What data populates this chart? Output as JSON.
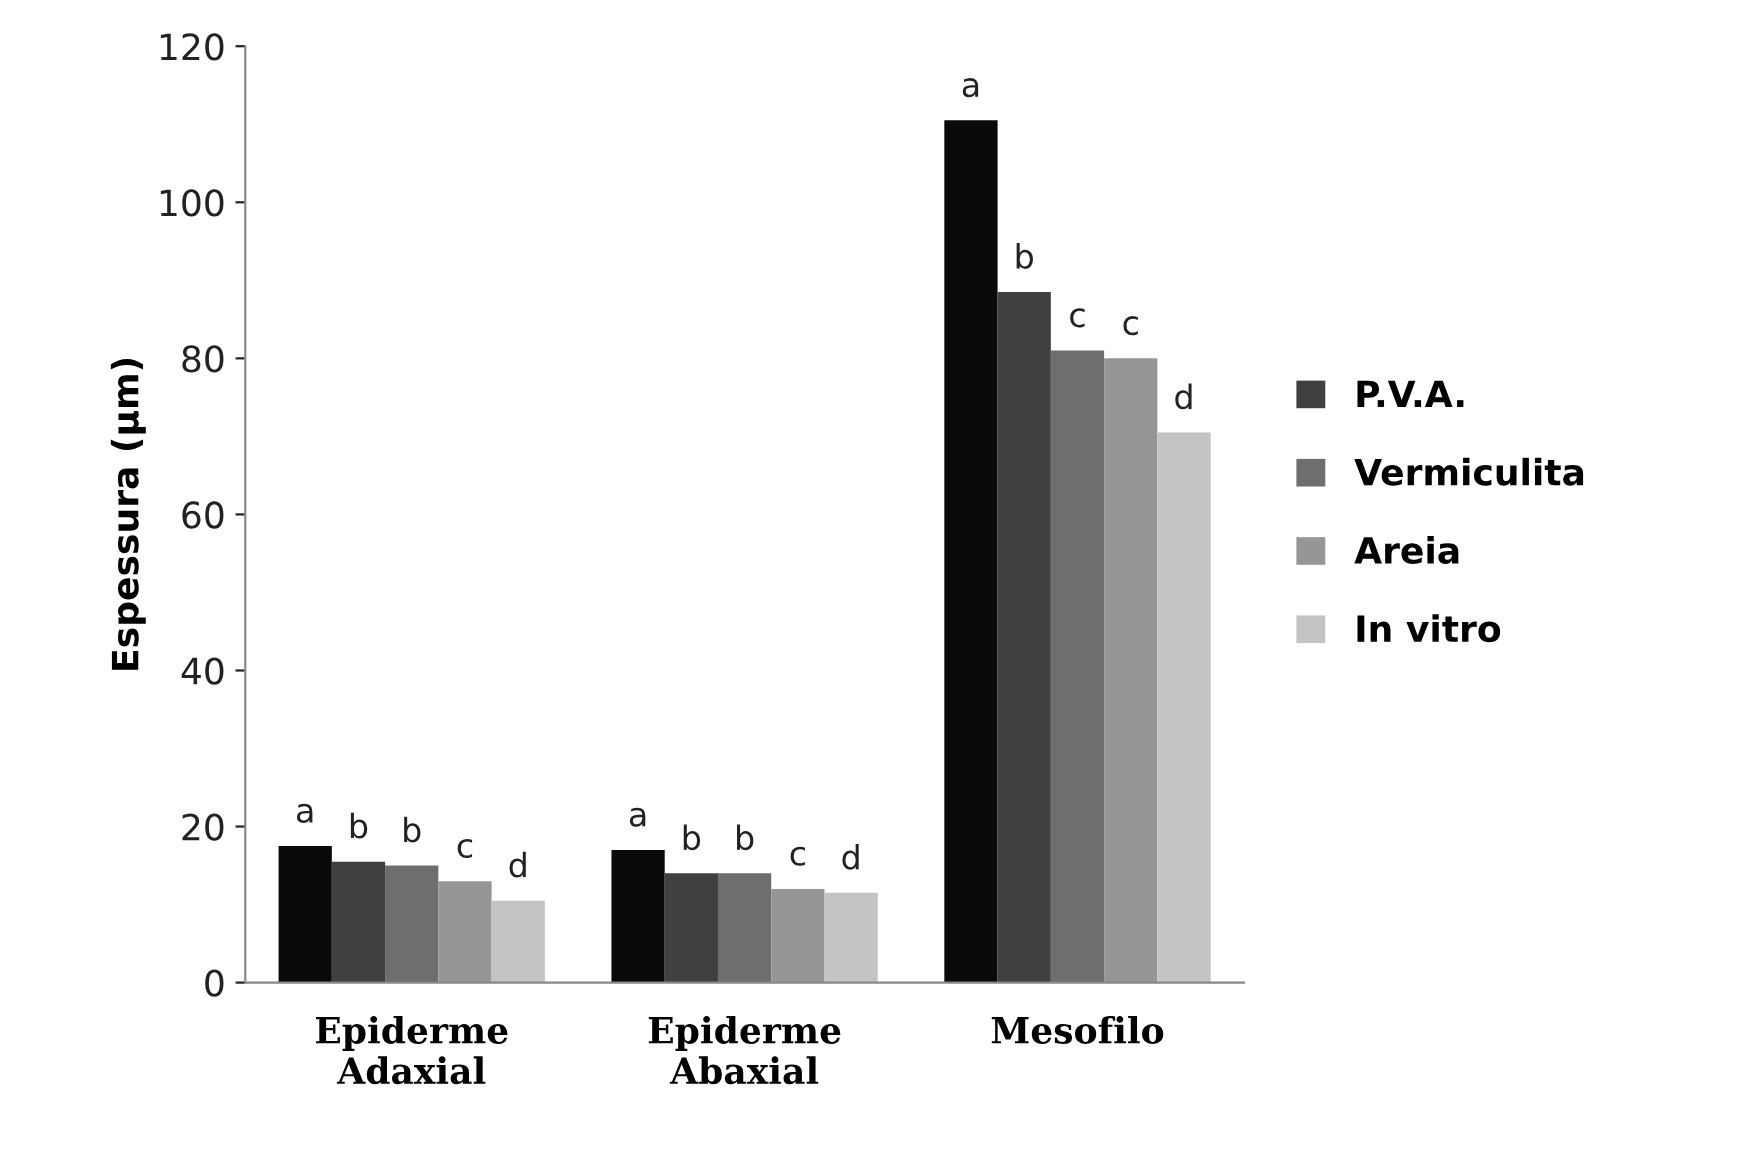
{
  "chart_data": {
    "type": "bar",
    "ylabel": "Espessura (µm)",
    "categories": [
      "Epiderme\nAdaxial",
      "Epiderme\nAbaxial",
      "Mesofilo"
    ],
    "series": [
      {
        "color": "#0a0a0a",
        "values": [
          17.5,
          17,
          110.5
        ],
        "value_labels": [
          "a",
          "a",
          "a"
        ]
      },
      {
        "name": "P.V.A.",
        "color": "#404040",
        "values": [
          15.5,
          14,
          88.5
        ],
        "value_labels": [
          "b",
          "b",
          "b"
        ]
      },
      {
        "name": "Vermiculita",
        "color": "#6e6e6e",
        "values": [
          15,
          14,
          81
        ],
        "value_labels": [
          "b",
          "b",
          "c"
        ]
      },
      {
        "name": "Areia",
        "color": "#969696",
        "values": [
          13,
          12,
          80
        ],
        "value_labels": [
          "c",
          "c",
          "c"
        ]
      },
      {
        "name": "In vitro",
        "color": "#c4c4c4",
        "values": [
          10.5,
          11.5,
          70.5
        ],
        "value_labels": [
          "d",
          "d",
          "d"
        ]
      }
    ],
    "ylim": [
      0,
      120
    ],
    "yticks": [
      0,
      20,
      40,
      60,
      80,
      100,
      120
    ],
    "grid": false,
    "legend": "right"
  }
}
